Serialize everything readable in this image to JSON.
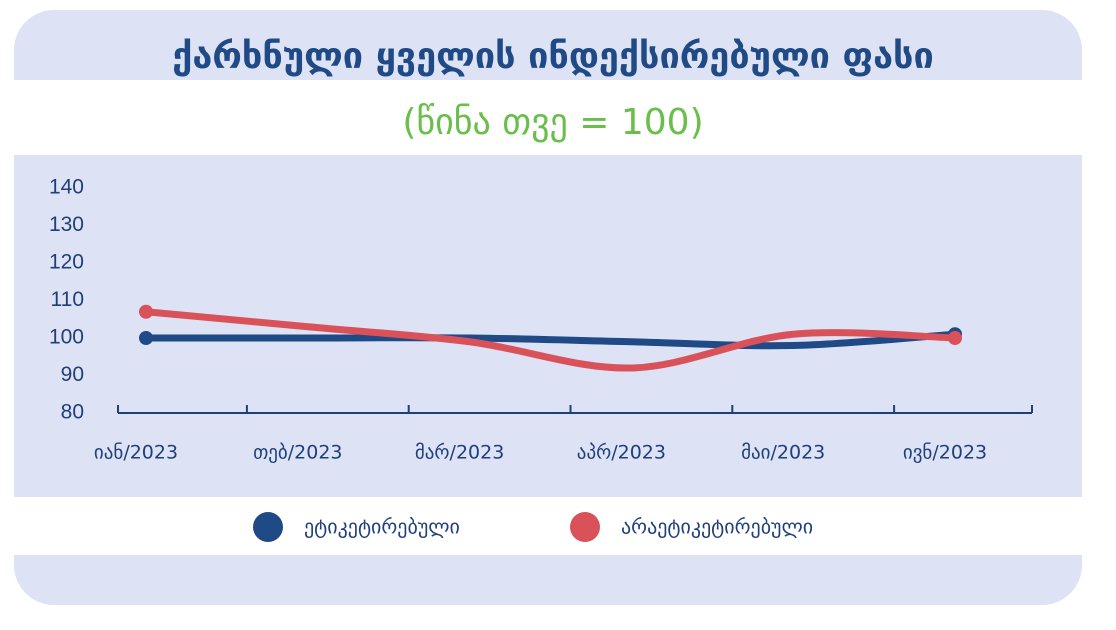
{
  "chart_data": {
    "type": "line",
    "title": "ქარხნული ყველის ინდექსირებული ფასი",
    "subtitle": "(წინა თვე = 100)",
    "categories": [
      "იან/2023",
      "თებ/2023",
      "მარ/2023",
      "აპრ/2023",
      "მაი/2023",
      "ივნ/2023"
    ],
    "series": [
      {
        "name": "ეტიკეტირებული",
        "color": "#1f4a85",
        "values": [
          100,
          100,
          100,
          99,
          98,
          101
        ]
      },
      {
        "name": "არაეტიკეტირებული",
        "color": "#d9525a",
        "values": [
          107,
          103,
          99,
          92,
          101,
          100
        ]
      }
    ],
    "ylim": [
      80,
      140
    ],
    "yticks": [
      80,
      90,
      100,
      110,
      120,
      130,
      140
    ],
    "grid": false
  }
}
